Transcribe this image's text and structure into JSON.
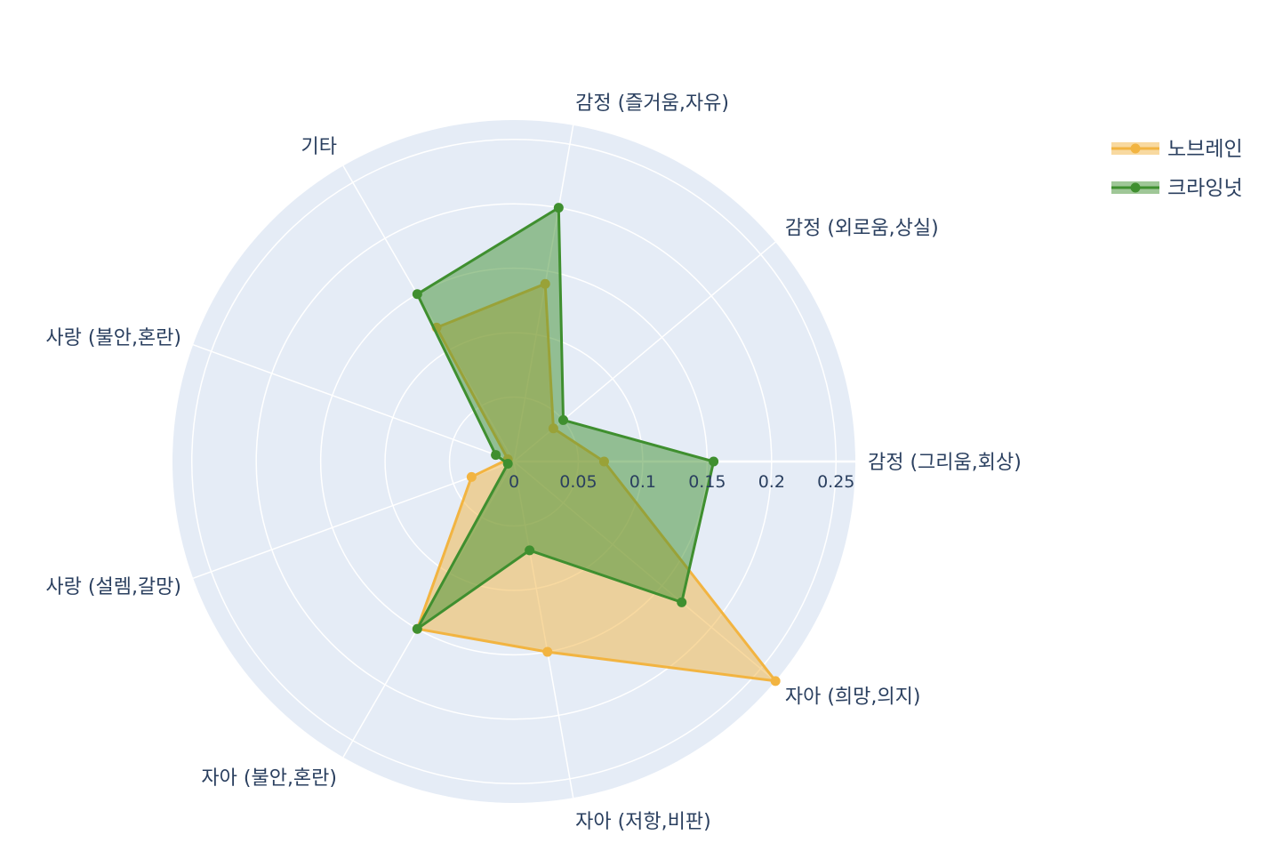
{
  "chart_data": {
    "type": "radar",
    "categories": [
      "감정 (그리움,회상)",
      "감정 (외로움,상실)",
      "감정 (즐거움,자유)",
      "기타",
      "사랑 (불안,혼란)",
      "사랑 (설렘,갈망)",
      "자아 (불안,혼란)",
      "자아 (저항,비판)",
      "자아 (희망,의지)"
    ],
    "radial_ticks": [
      "0",
      "0.05",
      "0.1",
      "0.15",
      "0.2",
      "0.25"
    ],
    "radial_range": [
      0,
      0.265
    ],
    "series": [
      {
        "name": "노브레인",
        "color": "#f2b441",
        "values": [
          0.07,
          0.04,
          0.14,
          0.12,
          0.005,
          0.035,
          0.15,
          0.15,
          0.265
        ]
      },
      {
        "name": "크라잉넛",
        "color": "#3f8f2f",
        "values": [
          0.155,
          0.05,
          0.2,
          0.15,
          0.015,
          0.005,
          0.15,
          0.07,
          0.17
        ]
      }
    ],
    "legend_position": "top-right",
    "grid": true
  }
}
